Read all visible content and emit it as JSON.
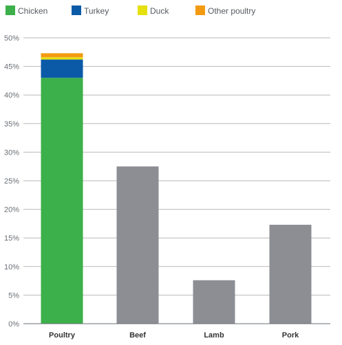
{
  "chart_data": {
    "type": "bar",
    "stacked_first_category": true,
    "categories": [
      "Poultry",
      "Beef",
      "Lamb",
      "Pork"
    ],
    "y_ticks": [
      "0%",
      "5%",
      "10%",
      "15%",
      "20%",
      "25%",
      "30%",
      "35%",
      "40%",
      "45%",
      "50%"
    ],
    "ylim": [
      0,
      50
    ],
    "unit": "%",
    "grid": true,
    "legend_position": "top-left",
    "poultry_breakdown": [
      {
        "name": "Chicken",
        "value": 43.0,
        "color": "#3cb04a"
      },
      {
        "name": "Turkey",
        "value": 3.2,
        "color": "#0b5aa8"
      },
      {
        "name": "Duck",
        "value": 0.4,
        "color": "#e6e010"
      },
      {
        "name": "Other poultry",
        "value": 0.7,
        "color": "#f39a12"
      }
    ],
    "other_bars": [
      {
        "category": "Beef",
        "value": 27.5,
        "color": "#8c8e94"
      },
      {
        "category": "Lamb",
        "value": 7.6,
        "color": "#8c8e94"
      },
      {
        "category": "Pork",
        "value": 17.3,
        "color": "#8c8e94"
      }
    ],
    "legend": [
      {
        "label": "Chicken",
        "color": "#3cb04a"
      },
      {
        "label": "Turkey",
        "color": "#0b5aa8"
      },
      {
        "label": "Duck",
        "color": "#e6e010"
      },
      {
        "label": "Other poultry",
        "color": "#f39a12"
      }
    ],
    "colors": {
      "grid": "#b9b9b9",
      "axis": "#6a6f75",
      "tick_text": "#6a6f75",
      "category_text": "#333333"
    }
  }
}
